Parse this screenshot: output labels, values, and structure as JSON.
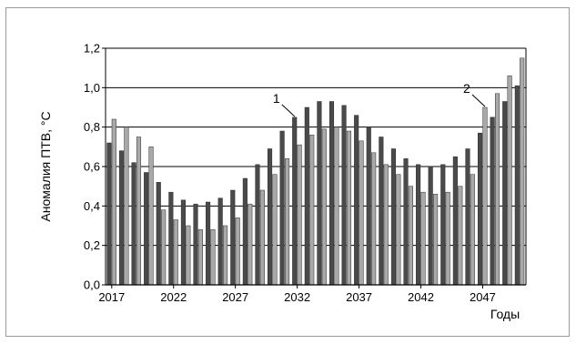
{
  "chart_data": {
    "type": "bar",
    "ylabel": "Аномалия ПТВ, °С",
    "xlabel": "Годы",
    "ylim": [
      0,
      1.2
    ],
    "yticks": [
      "0,0",
      "0,2",
      "0,4",
      "0,6",
      "0,8",
      "1,0",
      "1,2"
    ],
    "xtick_labels": [
      "2017",
      "2022",
      "2027",
      "2032",
      "2037",
      "2042",
      "2047"
    ],
    "grid": "horizontal",
    "categories": [
      "2017",
      "2018",
      "2019",
      "2020",
      "2021",
      "2022",
      "2023",
      "2024",
      "2025",
      "2026",
      "2027",
      "2028",
      "2029",
      "2030",
      "2031",
      "2032",
      "2033",
      "2034",
      "2035",
      "2036",
      "2037",
      "2038",
      "2039",
      "2040",
      "2041",
      "2042",
      "2043",
      "2044",
      "2045",
      "2046",
      "2047",
      "2048",
      "2049",
      "2050"
    ],
    "series": [
      {
        "name": "1",
        "color": "#4a4a4a",
        "values": [
          0.72,
          0.68,
          0.62,
          0.57,
          0.52,
          0.47,
          0.43,
          0.41,
          0.42,
          0.44,
          0.48,
          0.54,
          0.61,
          0.69,
          0.78,
          0.85,
          0.9,
          0.93,
          0.93,
          0.91,
          0.86,
          0.8,
          0.75,
          0.69,
          0.64,
          0.61,
          0.6,
          0.61,
          0.65,
          0.69,
          0.77,
          0.85,
          0.93,
          1.01
        ]
      },
      {
        "name": "2",
        "color": "#a9a9a9",
        "values": [
          0.84,
          0.8,
          0.75,
          0.7,
          0.38,
          0.33,
          0.3,
          0.28,
          0.28,
          0.3,
          0.34,
          0.41,
          0.48,
          0.56,
          0.64,
          0.71,
          0.76,
          0.79,
          0.8,
          0.78,
          0.73,
          0.67,
          0.61,
          0.56,
          0.5,
          0.47,
          0.46,
          0.47,
          0.5,
          0.56,
          0.9,
          0.97,
          1.06,
          1.15
        ]
      }
    ],
    "annotations": [
      {
        "text": "1",
        "series": "1",
        "category": "2032"
      },
      {
        "text": "2",
        "series": "2",
        "category": "2047"
      }
    ]
  }
}
